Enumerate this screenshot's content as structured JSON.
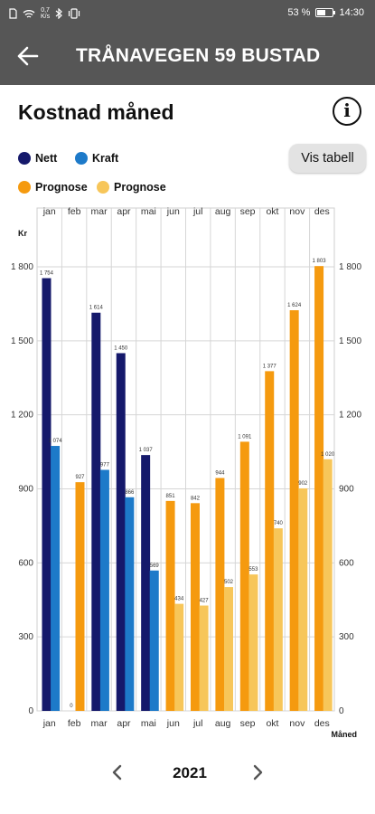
{
  "status_bar": {
    "net_speed_value": "0,7",
    "net_speed_unit": "K/s",
    "battery_text": "53 %",
    "battery_level": 0.53,
    "time": "14:30"
  },
  "app_bar": {
    "title": "TRÅNAVEGEN 59 BUSTAD",
    "back_icon": "arrow-left-icon"
  },
  "page": {
    "heading": "Kostnad måned",
    "info_icon": "info-circle-icon",
    "vis_tabell_label": "Vis tabell"
  },
  "legend": [
    {
      "label": "Nett",
      "color": "#15196b"
    },
    {
      "label": "Kraft",
      "color": "#1d7ac9"
    },
    {
      "label": "Prognose",
      "color": "#f59a0f"
    },
    {
      "label": "Prognose",
      "color": "#f7c65a"
    }
  ],
  "chart_data": {
    "type": "bar",
    "categories": [
      "jan",
      "feb",
      "mar",
      "apr",
      "mai",
      "jun",
      "jul",
      "aug",
      "sep",
      "okt",
      "nov",
      "des"
    ],
    "series": [
      {
        "name": "Nett",
        "color": "#15196b",
        "values": [
          1754,
          null,
          1614,
          1450,
          1037,
          null,
          null,
          null,
          null,
          null,
          null,
          null
        ]
      },
      {
        "name": "Kraft",
        "color": "#1d7ac9",
        "values": [
          1074,
          0,
          977,
          866,
          569,
          null,
          null,
          null,
          null,
          null,
          null,
          null
        ]
      },
      {
        "name": "Prognose",
        "color": "#f59a0f",
        "values": [
          null,
          927,
          null,
          null,
          null,
          851,
          842,
          944,
          1091,
          1377,
          1624,
          1803
        ]
      },
      {
        "name": "Prognose",
        "color": "#f7c65a",
        "values": [
          null,
          null,
          null,
          null,
          null,
          434,
          427,
          502,
          553,
          740,
          902,
          1020
        ]
      }
    ],
    "data_labels": [
      [
        "1 754",
        null,
        "1 614",
        "1 450",
        "1 037",
        null,
        null,
        null,
        null,
        null,
        null,
        null
      ],
      [
        "1 074",
        "0",
        "977",
        "866",
        "569",
        null,
        null,
        null,
        null,
        null,
        null,
        null
      ],
      [
        null,
        "927",
        null,
        null,
        null,
        "851",
        "842",
        "944",
        "1 091",
        "1 377",
        "1 624",
        "1 803"
      ],
      [
        null,
        null,
        null,
        null,
        null,
        "434",
        "427",
        "502",
        "553",
        "740",
        "902",
        "1 020"
      ]
    ],
    "y_ticks": [
      "0",
      "300",
      "600",
      "900",
      "1 200",
      "1 500",
      "1 800"
    ],
    "y_tick_values": [
      0,
      300,
      600,
      900,
      1200,
      1500,
      1800
    ],
    "ylim": [
      0,
      1800
    ],
    "ylabel": "Kr",
    "xlabel": "Måned",
    "grid": true
  },
  "pager": {
    "year": "2021",
    "prev_icon": "chevron-left-icon",
    "next_icon": "chevron-right-icon"
  }
}
